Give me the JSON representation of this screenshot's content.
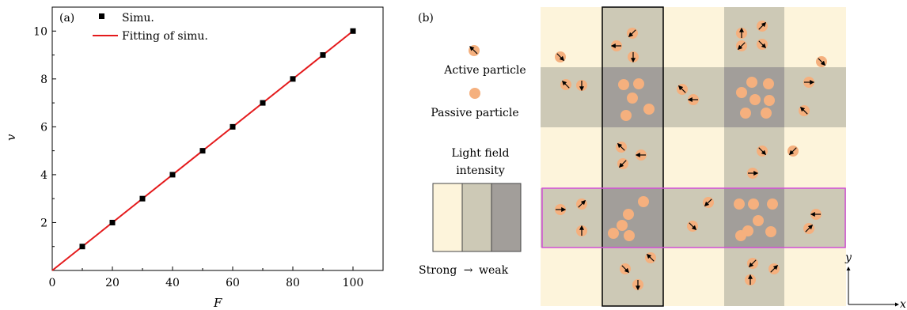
{
  "chart_data": [
    {
      "type": "scatter",
      "panel_label": "(a)",
      "xlabel": "F",
      "ylabel": "v",
      "xlim": [
        0,
        110
      ],
      "ylim": [
        0,
        11
      ],
      "x_ticks": [
        0,
        20,
        40,
        60,
        80,
        100
      ],
      "y_ticks": [
        2,
        4,
        6,
        8,
        10
      ],
      "grid": false,
      "legend_position": "top-left",
      "series": [
        {
          "name": "Simu.",
          "type": "scatter",
          "color": "#000000",
          "x": [
            10,
            20,
            30,
            40,
            50,
            60,
            70,
            80,
            90,
            100
          ],
          "y": [
            1,
            2,
            3,
            4,
            5,
            6,
            7,
            8,
            9,
            10
          ]
        },
        {
          "name": "Fitting of simu.",
          "type": "line",
          "color": "#e41a1c",
          "x": [
            0,
            100
          ],
          "y": [
            0,
            10
          ]
        }
      ]
    }
  ],
  "diagram": {
    "panel_label": "(b)",
    "legend": {
      "active_label": "Active particle",
      "passive_label": "Passive particle",
      "light_title_line1": "Light field",
      "light_title_line2": "intensity",
      "scale_start": "Strong",
      "scale_arrow": "→",
      "scale_end": "weak"
    },
    "axis_y": "y",
    "axis_x": "x",
    "colors": {
      "strong": "#fdf4db",
      "medium": "#cdc9b6",
      "weak": "#a29e9a",
      "particle": "#f5b07e",
      "highlight_box": "#d14fd6",
      "fit_line": "#e41a1c"
    }
  }
}
